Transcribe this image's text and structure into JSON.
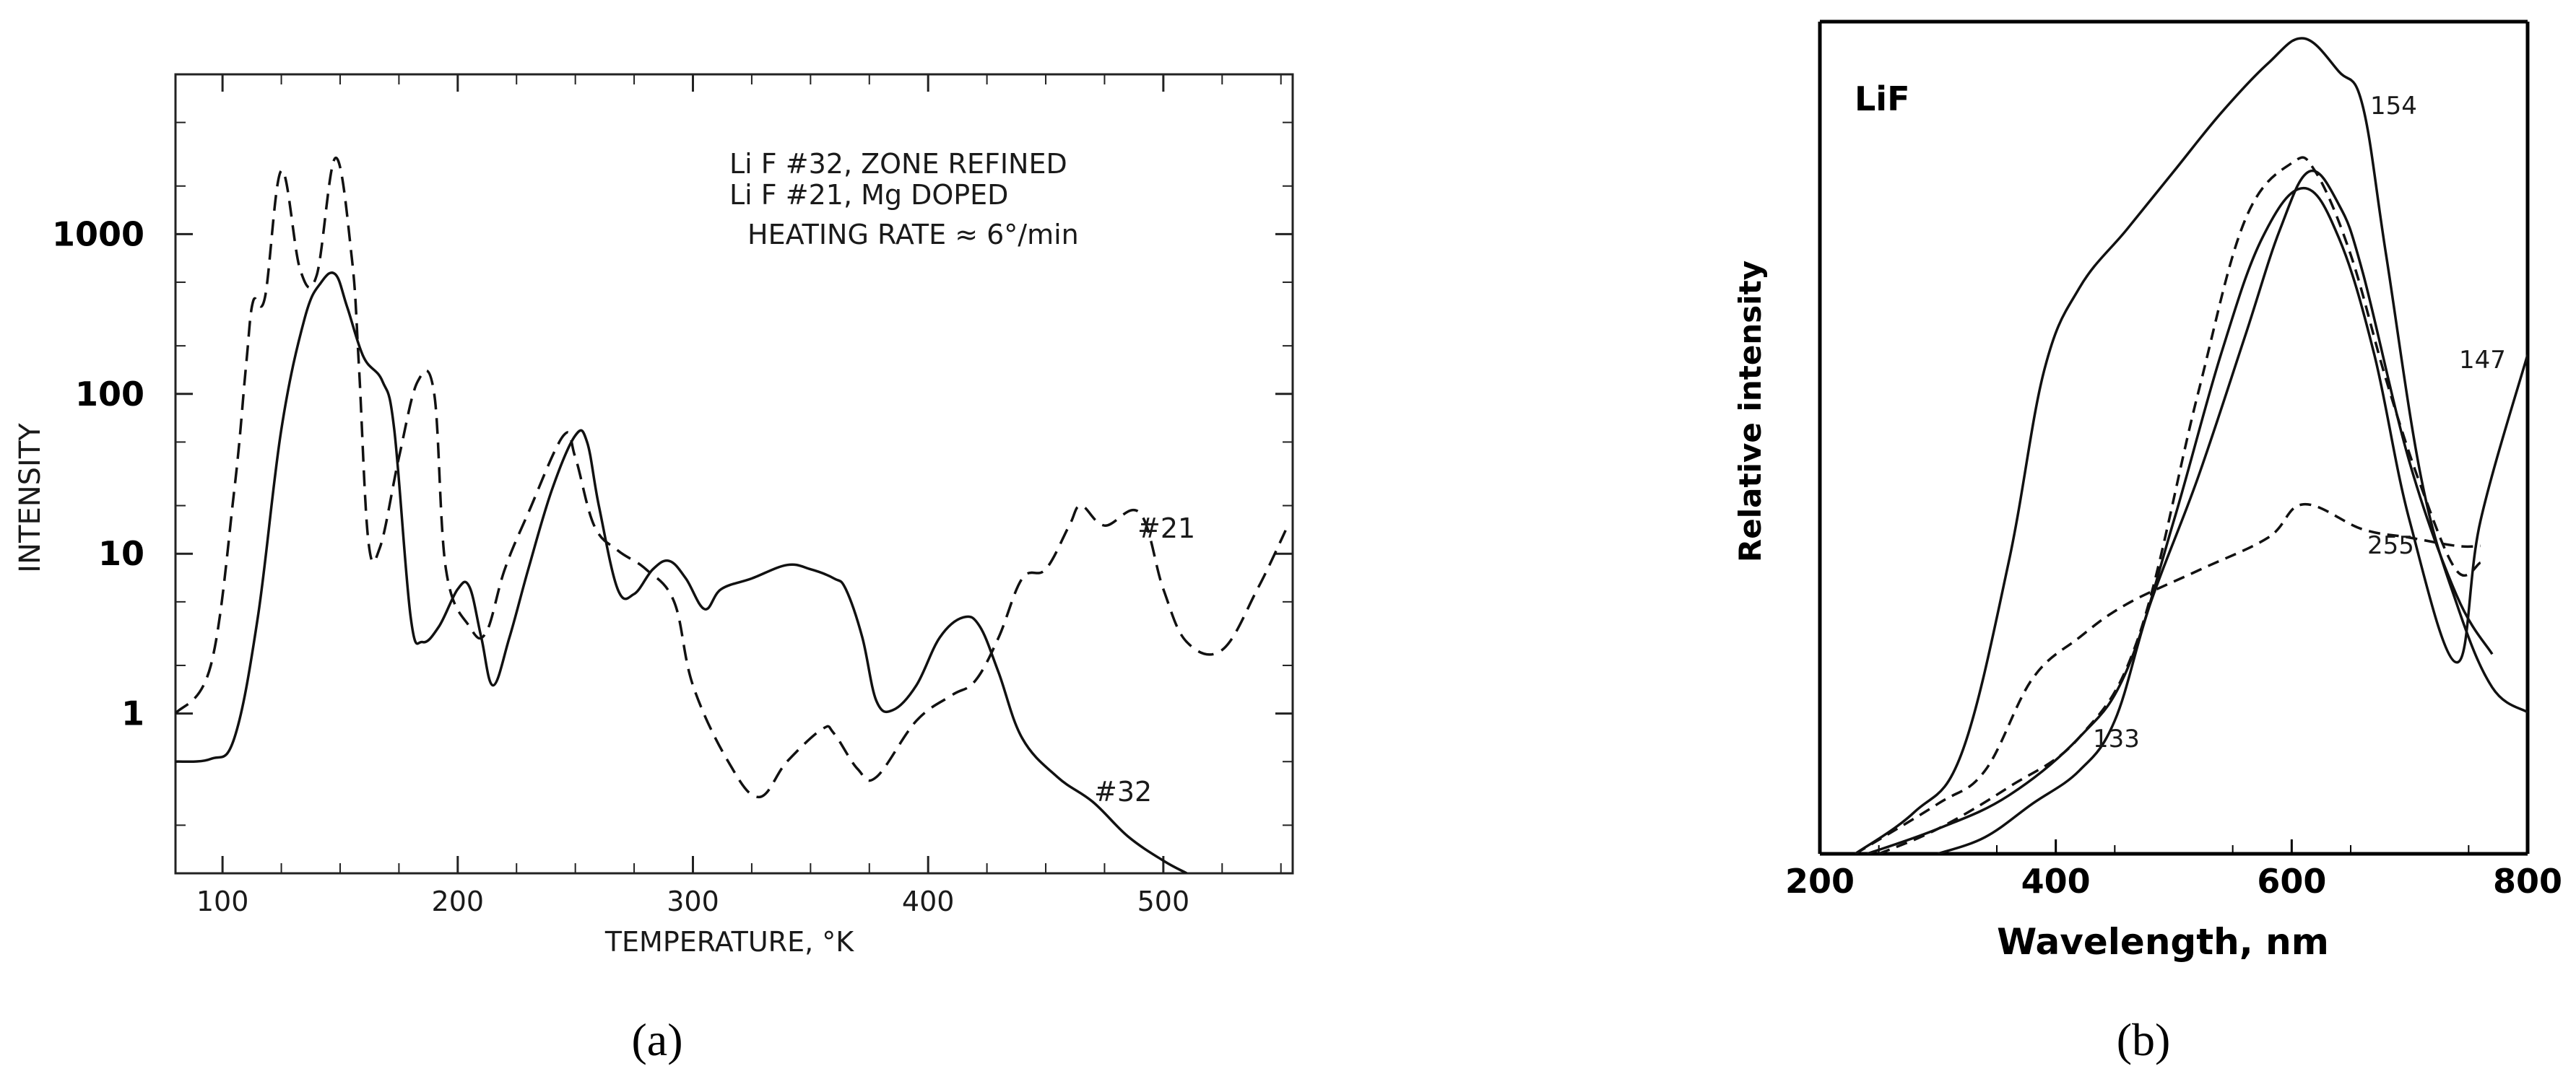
{
  "chart_data": [
    {
      "panel_label": "(a)",
      "type": "line",
      "xlabel": "TEMPERATURE, °K",
      "ylabel": "INTENSITY",
      "xlim": [
        80,
        555
      ],
      "ylim": [
        0.1,
        10000
      ],
      "y_scale": "log",
      "x_ticks": [
        100,
        200,
        300,
        400,
        500
      ],
      "x_tick_labels": [
        "100",
        "200",
        "300",
        "400",
        "500"
      ],
      "y_ticks": [
        1,
        10,
        100,
        1000
      ],
      "y_tick_labels": [
        "1",
        "10",
        "100",
        "1000"
      ],
      "annotations": [
        "Li F #32, ZONE REFINED",
        "Li F #21, Mg DOPED",
        "HEATING RATE ≈ 6°/min"
      ],
      "series": [
        {
          "name": "#32",
          "style": "solid",
          "points": [
            [
              80,
              0.5
            ],
            [
              95,
              0.52
            ],
            [
              105,
              0.7
            ],
            [
              115,
              4
            ],
            [
              125,
              60
            ],
            [
              135,
              300
            ],
            [
              142,
              500
            ],
            [
              148,
              560
            ],
            [
              153,
              350
            ],
            [
              160,
              170
            ],
            [
              168,
              120
            ],
            [
              173,
              60
            ],
            [
              180,
              4
            ],
            [
              185,
              2.8
            ],
            [
              192,
              3.5
            ],
            [
              200,
              6
            ],
            [
              205,
              6.2
            ],
            [
              210,
              3
            ],
            [
              215,
              1.5
            ],
            [
              222,
              3
            ],
            [
              230,
              8
            ],
            [
              240,
              25
            ],
            [
              250,
              55
            ],
            [
              255,
              50
            ],
            [
              260,
              20
            ],
            [
              268,
              6
            ],
            [
              275,
              5.6
            ],
            [
              283,
              8
            ],
            [
              290,
              9
            ],
            [
              297,
              7
            ],
            [
              305,
              4.5
            ],
            [
              312,
              6
            ],
            [
              325,
              7
            ],
            [
              340,
              8.5
            ],
            [
              350,
              8
            ],
            [
              360,
              7
            ],
            [
              365,
              6
            ],
            [
              372,
              3
            ],
            [
              378,
              1.2
            ],
            [
              385,
              1.05
            ],
            [
              395,
              1.5
            ],
            [
              405,
              3
            ],
            [
              415,
              4
            ],
            [
              422,
              3.5
            ],
            [
              430,
              1.8
            ],
            [
              440,
              0.7
            ],
            [
              455,
              0.4
            ],
            [
              470,
              0.28
            ],
            [
              485,
              0.17
            ],
            [
              500,
              0.12
            ],
            [
              510,
              0.1
            ]
          ]
        },
        {
          "name": "#21",
          "style": "dashed",
          "points": [
            [
              80,
              1
            ],
            [
              95,
              2
            ],
            [
              105,
              25
            ],
            [
              110,
              150
            ],
            [
              113,
              380
            ],
            [
              118,
              400
            ],
            [
              125,
              2500
            ],
            [
              133,
              600
            ],
            [
              140,
              550
            ],
            [
              148,
              3000
            ],
            [
              155,
              700
            ],
            [
              158,
              150
            ],
            [
              162,
              12
            ],
            [
              167,
              11
            ],
            [
              175,
              40
            ],
            [
              183,
              120
            ],
            [
              190,
              100
            ],
            [
              195,
              8
            ],
            [
              205,
              3.5
            ],
            [
              212,
              3.2
            ],
            [
              220,
              8
            ],
            [
              230,
              18
            ],
            [
              245,
              55
            ],
            [
              250,
              40
            ],
            [
              258,
              15
            ],
            [
              268,
              10.5
            ],
            [
              280,
              8
            ],
            [
              292,
              5
            ],
            [
              300,
              1.5
            ],
            [
              315,
              0.5
            ],
            [
              328,
              0.3
            ],
            [
              340,
              0.5
            ],
            [
              355,
              0.8
            ],
            [
              360,
              0.75
            ],
            [
              370,
              0.45
            ],
            [
              378,
              0.4
            ],
            [
              395,
              0.9
            ],
            [
              410,
              1.3
            ],
            [
              420,
              1.6
            ],
            [
              430,
              3
            ],
            [
              440,
              7
            ],
            [
              450,
              8
            ],
            [
              460,
              15
            ],
            [
              465,
              20
            ],
            [
              475,
              15
            ],
            [
              490,
              18
            ],
            [
              500,
              6
            ],
            [
              510,
              2.8
            ],
            [
              525,
              2.5
            ],
            [
              540,
              6
            ],
            [
              552,
              14
            ]
          ]
        }
      ],
      "series_labels": [
        "#21",
        "#32"
      ],
      "grid": false
    },
    {
      "panel_label": "(b)",
      "type": "line",
      "title": "LiF",
      "xlabel": "Wavelength, nm",
      "ylabel": "Relative intensity",
      "xlim": [
        200,
        800
      ],
      "ylim": [
        0,
        1
      ],
      "x_ticks": [
        200,
        400,
        600,
        800
      ],
      "x_tick_labels": [
        "200",
        "400",
        "600",
        "800"
      ],
      "series": [
        {
          "name": "154",
          "style": "solid",
          "points": [
            [
              230,
              0
            ],
            [
              280,
              0.05
            ],
            [
              320,
              0.12
            ],
            [
              360,
              0.35
            ],
            [
              390,
              0.58
            ],
            [
              420,
              0.68
            ],
            [
              460,
              0.75
            ],
            [
              500,
              0.82
            ],
            [
              540,
              0.89
            ],
            [
              580,
              0.95
            ],
            [
              610,
              0.98
            ],
            [
              640,
              0.94
            ],
            [
              660,
              0.9
            ],
            [
              680,
              0.72
            ],
            [
              710,
              0.45
            ],
            [
              740,
              0.3
            ],
            [
              770,
              0.2
            ],
            [
              800,
              0.17
            ]
          ]
        },
        {
          "name": "147",
          "style": "solid",
          "points": [
            [
              240,
              0
            ],
            [
              300,
              0.03
            ],
            [
              360,
              0.07
            ],
            [
              420,
              0.14
            ],
            [
              460,
              0.22
            ],
            [
              500,
              0.4
            ],
            [
              540,
              0.6
            ],
            [
              575,
              0.74
            ],
            [
              610,
              0.8
            ],
            [
              640,
              0.74
            ],
            [
              670,
              0.6
            ],
            [
              700,
              0.4
            ],
            [
              740,
              0.23
            ],
            [
              760,
              0.4
            ],
            [
              800,
              0.6
            ]
          ]
        },
        {
          "name": "133",
          "style": "solid",
          "points": [
            [
              300,
              0
            ],
            [
              340,
              0.02
            ],
            [
              380,
              0.06
            ],
            [
              420,
              0.1
            ],
            [
              450,
              0.16
            ],
            [
              480,
              0.3
            ],
            [
              520,
              0.45
            ],
            [
              560,
              0.62
            ],
            [
              590,
              0.75
            ],
            [
              615,
              0.82
            ],
            [
              640,
              0.78
            ],
            [
              660,
              0.7
            ],
            [
              700,
              0.47
            ],
            [
              740,
              0.31
            ],
            [
              770,
              0.24
            ]
          ]
        },
        {
          "name": "255",
          "style": "dashed",
          "points": [
            [
              230,
              0
            ],
            [
              300,
              0.06
            ],
            [
              340,
              0.1
            ],
            [
              380,
              0.21
            ],
            [
              420,
              0.26
            ],
            [
              460,
              0.3
            ],
            [
              520,
              0.34
            ],
            [
              580,
              0.38
            ],
            [
              610,
              0.42
            ],
            [
              660,
              0.39
            ],
            [
              700,
              0.38
            ],
            [
              740,
              0.37
            ],
            [
              760,
              0.37
            ]
          ]
        },
        {
          "name": "",
          "style": "dashed",
          "points": [
            [
              250,
              0
            ],
            [
              300,
              0.03
            ],
            [
              360,
              0.08
            ],
            [
              420,
              0.14
            ],
            [
              470,
              0.26
            ],
            [
              520,
              0.55
            ],
            [
              560,
              0.76
            ],
            [
              600,
              0.83
            ],
            [
              620,
              0.82
            ],
            [
              650,
              0.72
            ],
            [
              680,
              0.57
            ],
            [
              710,
              0.44
            ],
            [
              740,
              0.34
            ],
            [
              760,
              0.35
            ]
          ]
        }
      ],
      "series_labels": [
        "154",
        "147",
        "255",
        "133"
      ],
      "grid": false
    }
  ]
}
